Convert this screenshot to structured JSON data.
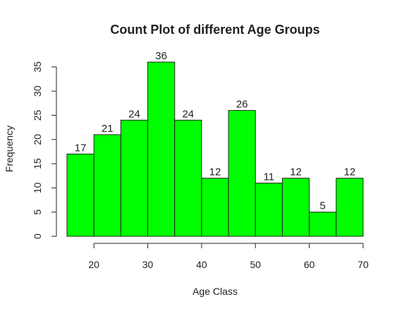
{
  "chart_data": {
    "type": "bar",
    "title": "Count Plot of different Age Groups",
    "xlabel": "Age Class",
    "ylabel": "Frequency",
    "bin_edges": [
      15,
      20,
      25,
      30,
      35,
      40,
      45,
      50,
      55,
      60,
      65,
      70
    ],
    "values": [
      17,
      21,
      24,
      36,
      24,
      12,
      26,
      11,
      12,
      5,
      12
    ],
    "data_labels": [
      "17",
      "21",
      "24",
      "36",
      "24",
      "12",
      "26",
      "11",
      "12",
      "5",
      "12"
    ],
    "xlim": [
      15,
      70
    ],
    "ylim": [
      0,
      36
    ],
    "x_ticks": [
      20,
      30,
      40,
      50,
      60,
      70
    ],
    "x_tick_labels": [
      "20",
      "30",
      "40",
      "50",
      "60",
      "70"
    ],
    "y_ticks": [
      0,
      5,
      10,
      15,
      20,
      25,
      30,
      35
    ],
    "y_tick_labels": [
      "0",
      "5",
      "10",
      "15",
      "20",
      "25",
      "30",
      "35"
    ],
    "bar_color": "#00ff00",
    "grid": false,
    "legend": "none"
  }
}
